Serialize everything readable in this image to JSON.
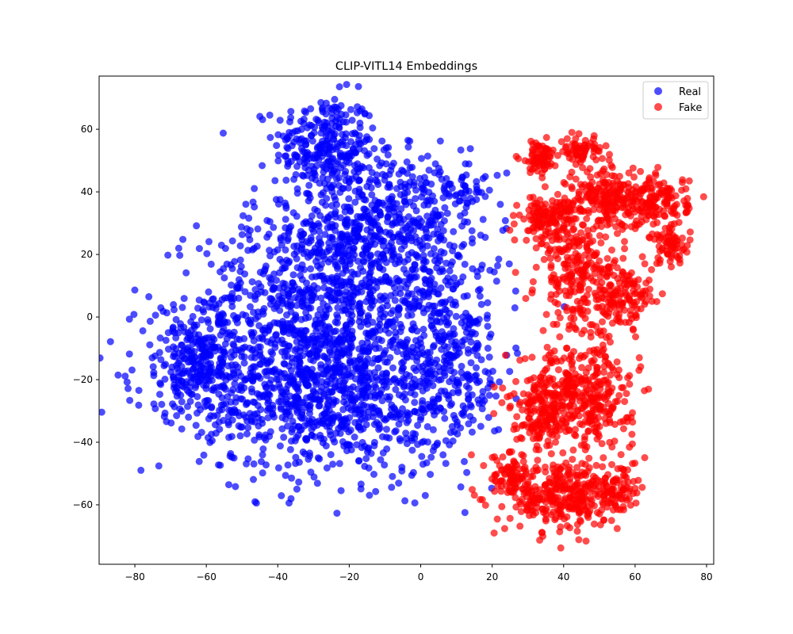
{
  "chart_data": {
    "type": "scatter",
    "title": "CLIP-VITL14 Embeddings",
    "xlabel": "",
    "ylabel": "",
    "xlim": [
      -90,
      82
    ],
    "ylim": [
      -79,
      77
    ],
    "x_ticks": [
      -80,
      -60,
      -40,
      -20,
      0,
      20,
      40,
      60,
      80
    ],
    "y_ticks": [
      -60,
      -40,
      -20,
      0,
      20,
      40,
      60
    ],
    "grid": false,
    "legend_position": "top-right",
    "series": [
      {
        "name": "Real",
        "color": "#0000ff",
        "clusters": [
          {
            "cx": -27,
            "cy": 55,
            "sx": 7,
            "sy": 8,
            "n": 260
          },
          {
            "cx": -12,
            "cy": 30,
            "sx": 12,
            "sy": 12,
            "n": 500
          },
          {
            "cx": -30,
            "cy": 5,
            "sx": 16,
            "sy": 15,
            "n": 700
          },
          {
            "cx": -25,
            "cy": -25,
            "sx": 18,
            "sy": 13,
            "n": 900
          },
          {
            "cx": -62,
            "cy": -15,
            "sx": 9,
            "sy": 9,
            "n": 320
          },
          {
            "cx": 5,
            "cy": 0,
            "sx": 9,
            "sy": 16,
            "n": 300
          },
          {
            "cx": 12,
            "cy": 40,
            "sx": 4,
            "sy": 3,
            "n": 40
          },
          {
            "cx": 10,
            "cy": -20,
            "sx": 6,
            "sy": 10,
            "n": 100
          }
        ]
      },
      {
        "name": "Fake",
        "color": "#ff0000",
        "clusters": [
          {
            "cx": 33,
            "cy": 51,
            "sx": 2.5,
            "sy": 2.5,
            "n": 70
          },
          {
            "cx": 45,
            "cy": 53,
            "sx": 3,
            "sy": 2,
            "n": 70
          },
          {
            "cx": 36,
            "cy": 31,
            "sx": 4,
            "sy": 4,
            "n": 150
          },
          {
            "cx": 53,
            "cy": 38,
            "sx": 6,
            "sy": 5,
            "n": 220
          },
          {
            "cx": 67,
            "cy": 37,
            "sx": 4,
            "sy": 4,
            "n": 120
          },
          {
            "cx": 70,
            "cy": 23,
            "sx": 3,
            "sy": 3,
            "n": 70
          },
          {
            "cx": 45,
            "cy": 12,
            "sx": 6,
            "sy": 9,
            "n": 250
          },
          {
            "cx": 58,
            "cy": 5,
            "sx": 4,
            "sy": 5,
            "n": 100
          },
          {
            "cx": 44,
            "cy": -25,
            "sx": 8,
            "sy": 8,
            "n": 400
          },
          {
            "cx": 33,
            "cy": -32,
            "sx": 4,
            "sy": 6,
            "n": 100
          },
          {
            "cx": 40,
            "cy": -57,
            "sx": 8,
            "sy": 6,
            "n": 350
          },
          {
            "cx": 25,
            "cy": -50,
            "sx": 3,
            "sy": 3,
            "n": 60
          },
          {
            "cx": 55,
            "cy": -55,
            "sx": 3,
            "sy": 3,
            "n": 60
          }
        ]
      }
    ]
  }
}
